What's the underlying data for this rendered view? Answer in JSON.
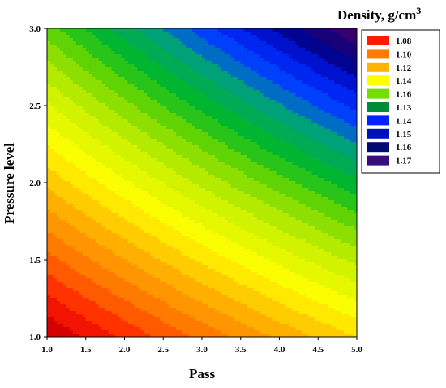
{
  "chart_data": {
    "type": "heatmap",
    "subtype": "filled-contour",
    "title": "Density, g/cm",
    "title_superscript": "3",
    "xlabel": "Pass",
    "ylabel": "Pressure level",
    "xlim": [
      1.0,
      5.0
    ],
    "ylim": [
      1.0,
      3.0
    ],
    "x_ticks": [
      "1.0",
      "1.5",
      "2.0",
      "2.5",
      "3.0",
      "3.5",
      "4.0",
      "4.5",
      "5.0"
    ],
    "y_ticks": [
      "1.0",
      "1.5",
      "2.0",
      "2.5",
      "3.0"
    ],
    "grid": false,
    "legend_position": "top-right",
    "colorscale_endpoints": [
      "#ff0000",
      "#3a0070"
    ],
    "legend": [
      {
        "label": "1.08",
        "color": "#ff1a00"
      },
      {
        "label": "1.10",
        "color": "#ff7a00"
      },
      {
        "label": "1.12",
        "color": "#ffb400"
      },
      {
        "label": "1.14",
        "color": "#ffff00"
      },
      {
        "label": "1.16",
        "color": "#77dd00"
      },
      {
        "label": "1.13",
        "color": "#008a3a"
      },
      {
        "label": "1.14",
        "color": "#0022ff"
      },
      {
        "label": "1.15",
        "color": "#0010c0"
      },
      {
        "label": "1.16",
        "color": "#000a70"
      },
      {
        "label": "1.17",
        "color": "#3a0a80"
      }
    ],
    "surface_corners": {
      "x1_y1": 1.08,
      "x5_y1": 1.145,
      "x1_y3": 1.155,
      "x5_y3": 1.17
    }
  }
}
